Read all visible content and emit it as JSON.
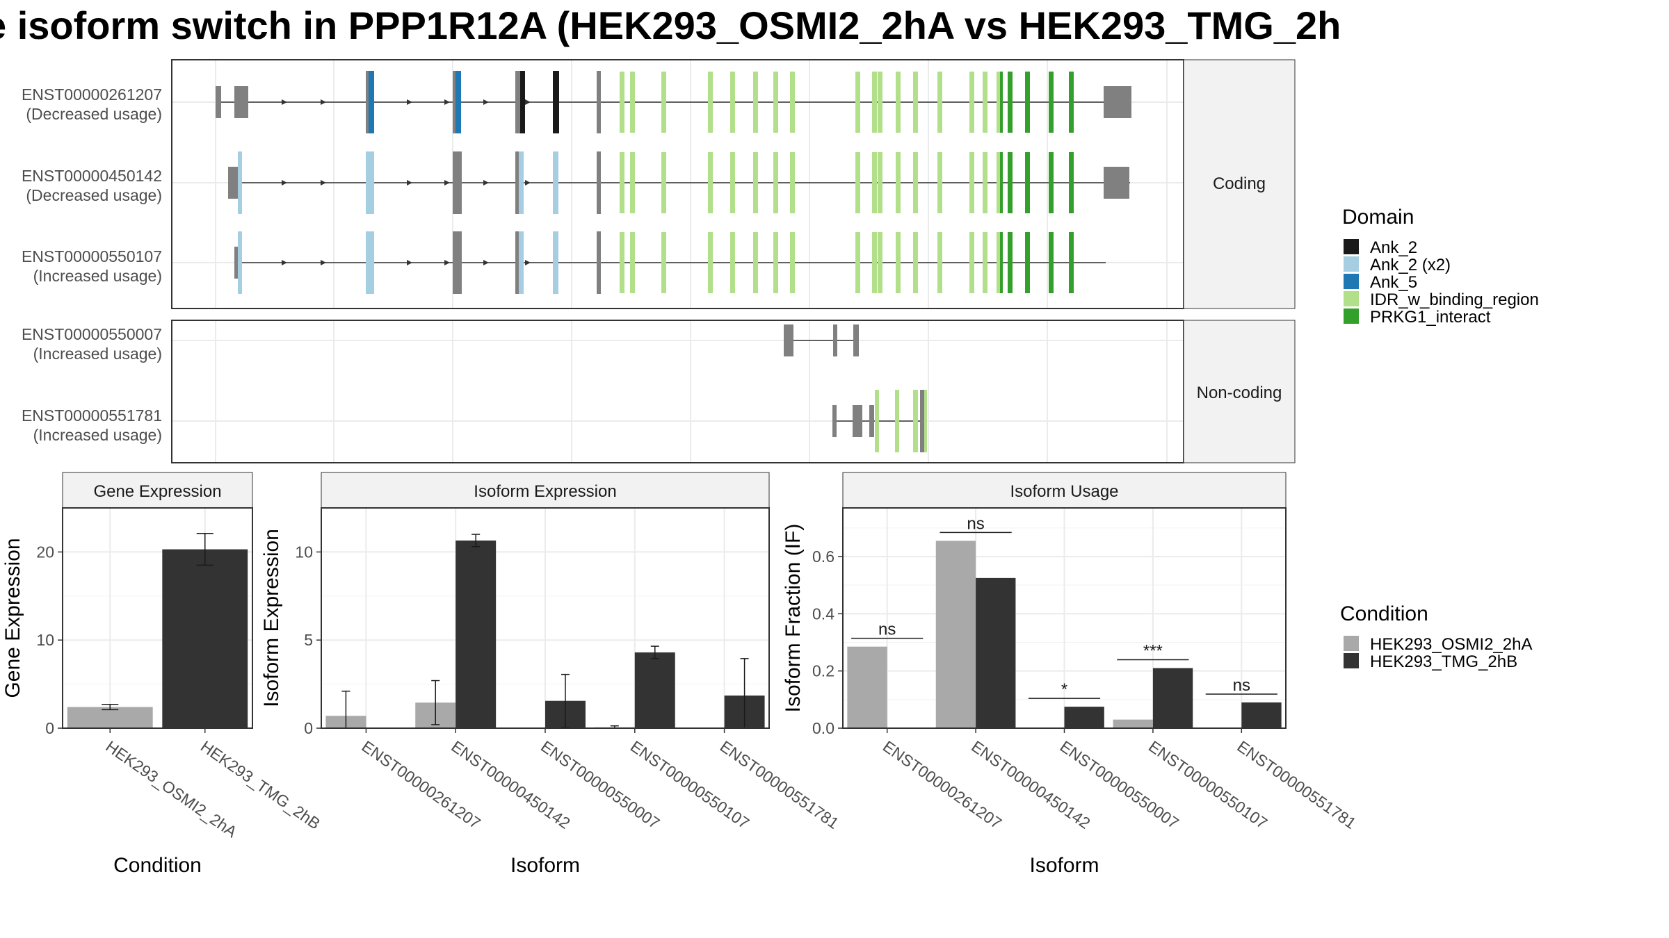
{
  "title": "e isoform switch in PPP1R12A (HEK293_OSMI2_2hA vs HEK293_TMG_2h",
  "structure": {
    "facets": [
      {
        "label": "Coding",
        "isoforms": [
          {
            "id": "ENST00000261207",
            "note": "(Decreased usage)"
          },
          {
            "id": "ENST00000450142",
            "note": "(Decreased usage)"
          },
          {
            "id": "ENST00000550107",
            "note": "(Increased usage)"
          }
        ]
      },
      {
        "label": "Non-coding",
        "isoforms": [
          {
            "id": "ENST00000550007",
            "note": "(Increased usage)"
          },
          {
            "id": "ENST00000551781",
            "note": "(Increased usage)"
          }
        ]
      }
    ]
  },
  "domain_legend": {
    "title": "Domain",
    "items": [
      {
        "label": "Ank_2",
        "color": "#1a1a1a"
      },
      {
        "label": "Ank_2 (x2)",
        "color": "#a6cee3"
      },
      {
        "label": "Ank_5",
        "color": "#1f78b4"
      },
      {
        "label": "IDR_w_binding_region",
        "color": "#b2df8a"
      },
      {
        "label": "PRKG1_interact",
        "color": "#33a02c"
      }
    ]
  },
  "condition_legend": {
    "title": "Condition",
    "items": [
      {
        "label": "HEK293_OSMI2_2hA",
        "color": "#a9a9a9"
      },
      {
        "label": "HEK293_TMG_2hB",
        "color": "#333333"
      }
    ]
  },
  "chart_data": [
    {
      "type": "bar",
      "title": "Gene Expression",
      "xlabel": "Condition",
      "ylabel": "Gene Expression",
      "ylim": [
        0,
        25
      ],
      "yticks": [
        0,
        10,
        20
      ],
      "categories": [
        "HEK293_OSMI2_2hA",
        "HEK293_TMG_2hB"
      ],
      "values": [
        2.4,
        20.3
      ],
      "errors": [
        0.3,
        1.8
      ],
      "colors": [
        "#a9a9a9",
        "#333333"
      ]
    },
    {
      "type": "bar",
      "title": "Isoform Expression",
      "xlabel": "Isoform",
      "ylabel": "Isoform Expression",
      "ylim": [
        0,
        12.5
      ],
      "yticks": [
        0,
        5,
        10
      ],
      "categories": [
        "ENST00000261207",
        "ENST00000450142",
        "ENST00000550007",
        "ENST00000550107",
        "ENST00000551781"
      ],
      "series": [
        {
          "name": "HEK293_OSMI2_2hA",
          "color": "#a9a9a9",
          "values": [
            0.7,
            1.45,
            0.0,
            0.05,
            0.0
          ],
          "errors": [
            1.4,
            1.25,
            0.0,
            0.08,
            0.0
          ]
        },
        {
          "name": "HEK293_TMG_2hB",
          "color": "#333333",
          "values": [
            0.0,
            10.65,
            1.55,
            4.3,
            1.85
          ],
          "errors": [
            0.0,
            0.35,
            1.5,
            0.35,
            2.1
          ]
        }
      ]
    },
    {
      "type": "bar",
      "title": "Isoform Usage",
      "xlabel": "Isoform",
      "ylabel": "Isoform Fraction (IF)",
      "ylim": [
        0,
        0.77
      ],
      "yticks": [
        0.0,
        0.2,
        0.4,
        0.6
      ],
      "categories": [
        "ENST00000261207",
        "ENST00000450142",
        "ENST00000550007",
        "ENST00000550107",
        "ENST00000551781"
      ],
      "series": [
        {
          "name": "HEK293_OSMI2_2hA",
          "color": "#a9a9a9",
          "values": [
            0.285,
            0.655,
            0.0,
            0.03,
            0.0
          ]
        },
        {
          "name": "HEK293_TMG_2hB",
          "color": "#333333",
          "values": [
            0.0,
            0.525,
            0.075,
            0.21,
            0.09
          ]
        }
      ],
      "significance": [
        "ns",
        "ns",
        "*",
        "***",
        "ns"
      ]
    }
  ]
}
